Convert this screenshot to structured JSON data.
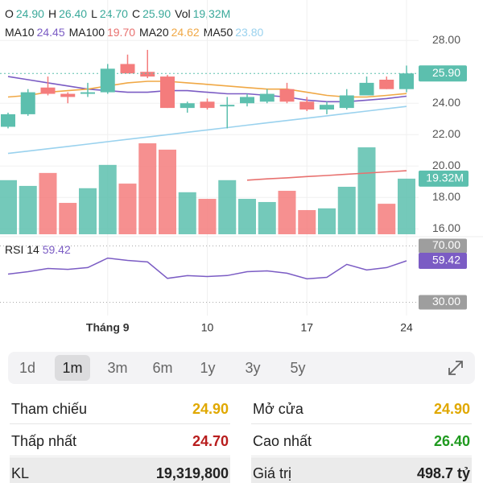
{
  "chart_data": {
    "type": "candlestick",
    "header": [
      {
        "label": "O",
        "value": "24.90"
      },
      {
        "label": "H",
        "value": "26.40"
      },
      {
        "label": "L",
        "value": "24.70"
      },
      {
        "label": "C",
        "value": "25.90"
      },
      {
        "label": "Vol",
        "value": "19,32M"
      }
    ],
    "header_color": "#3aa99a",
    "categories": [
      null,
      null,
      null,
      null,
      null,
      "Tháng 9",
      null,
      null,
      null,
      null,
      "10",
      null,
      null,
      null,
      null,
      "17",
      null,
      null,
      null,
      null,
      "24"
    ],
    "open": [
      22.5,
      23.3,
      25.0,
      24.6,
      24.6,
      24.7,
      26.5,
      26.0,
      25.7,
      23.7,
      24.1,
      23.8,
      24.0,
      24.1,
      24.9,
      24.1,
      23.6,
      23.7,
      24.5,
      25.5,
      24.9
    ],
    "high": [
      23.4,
      24.9,
      25.7,
      24.7,
      25.3,
      26.5,
      27.1,
      27.4,
      25.8,
      24.1,
      24.3,
      24.4,
      24.6,
      24.9,
      25.3,
      24.4,
      24.1,
      24.9,
      25.7,
      25.7,
      26.4
    ],
    "low": [
      22.4,
      23.2,
      24.5,
      24.0,
      24.4,
      24.6,
      25.9,
      25.6,
      23.7,
      23.4,
      23.6,
      22.4,
      23.8,
      24.0,
      24.0,
      23.5,
      23.3,
      23.6,
      24.5,
      24.9,
      24.7
    ],
    "close": [
      23.3,
      24.7,
      24.6,
      24.4,
      24.7,
      26.2,
      25.9,
      25.7,
      23.7,
      24.0,
      23.7,
      23.9,
      24.4,
      24.6,
      24.1,
      23.6,
      23.9,
      24.5,
      25.3,
      24.9,
      25.9
    ],
    "up_color": "#5cbfae",
    "down_color": "#f47c7c",
    "ylim": [
      15.5,
      29.5
    ],
    "yticks": [
      {
        "value": 28,
        "label": "28.00"
      },
      {
        "value": 24,
        "label": "24.00"
      },
      {
        "value": 22,
        "label": "22.00"
      },
      {
        "value": 20,
        "label": "20.00"
      },
      {
        "value": 18,
        "label": "18.00"
      },
      {
        "value": 16,
        "label": "16.00"
      }
    ],
    "grid": true,
    "last_price": {
      "value": 25.9,
      "label": "25.90"
    },
    "volume": {
      "values": [
        18.8,
        16.8,
        21.3,
        10.9,
        16.0,
        24.1,
        17.6,
        31.6,
        29.4,
        14.6,
        12.3,
        18.8,
        12.3,
        11.2,
        15.1,
        8.4,
        9.0,
        16.5,
        30.2,
        10.6,
        19.32
      ],
      "ylim": [
        0,
        40
      ],
      "last_label": "19.32M"
    },
    "ma": [
      {
        "name": "MA10",
        "value": "24.45",
        "color": "#7b5cc4",
        "values": [
          25.7,
          25.5,
          25.3,
          25.1,
          24.9,
          24.8,
          24.7,
          24.7,
          24.8,
          24.8,
          24.7,
          24.6,
          24.6,
          24.5,
          24.4,
          24.2,
          24.1,
          24.1,
          24.2,
          24.3,
          24.45
        ]
      },
      {
        "name": "MA100",
        "value": "19.70",
        "color": "#e8716f",
        "values": [
          null,
          null,
          null,
          null,
          null,
          null,
          null,
          null,
          null,
          null,
          null,
          null,
          19.1,
          19.18,
          19.25,
          19.33,
          19.4,
          19.48,
          19.55,
          19.63,
          19.7
        ]
      },
      {
        "name": "MA20",
        "value": "24.62",
        "color": "#f0a845",
        "values": [
          24.4,
          24.5,
          24.7,
          24.8,
          24.9,
          25.1,
          25.3,
          25.4,
          25.4,
          25.3,
          25.2,
          25.1,
          25.0,
          24.9,
          24.9,
          24.7,
          24.5,
          24.4,
          24.4,
          24.5,
          24.62
        ]
      },
      {
        "name": "MA50",
        "value": "23.80",
        "color": "#9ad2ee",
        "values": [
          20.8,
          20.95,
          21.1,
          21.25,
          21.4,
          21.55,
          21.7,
          21.85,
          22.0,
          22.15,
          22.3,
          22.45,
          22.6,
          22.75,
          22.9,
          23.05,
          23.2,
          23.35,
          23.5,
          23.65,
          23.8
        ]
      }
    ],
    "rsi": {
      "name": "RSI 14",
      "value_label": "59.42",
      "color": "#7b5cc4",
      "values": [
        50,
        51.7,
        54,
        53.4,
        54.6,
        61.4,
        59.7,
        58.6,
        47,
        48.9,
        48.3,
        49,
        51.7,
        52.3,
        50.6,
        46.6,
        47.7,
        56.9,
        52.9,
        54.6,
        59.42
      ],
      "ylim": [
        24,
        76
      ],
      "levels": [
        {
          "value": 70,
          "label": "70.00"
        },
        {
          "value": 30,
          "label": "30.00"
        }
      ]
    }
  },
  "periods": {
    "items": [
      "1d",
      "1m",
      "3m",
      "6m",
      "1y",
      "3y",
      "5y"
    ],
    "selected": 1
  },
  "stats": {
    "rows": [
      [
        {
          "label": "Tham chiếu",
          "value": "24.90",
          "color": "#e0a800"
        },
        {
          "label": "Mở cửa",
          "value": "24.90",
          "color": "#e0a800"
        }
      ],
      [
        {
          "label": "Thấp nhất",
          "value": "24.70",
          "color": "#b81d1d"
        },
        {
          "label": "Cao nhất",
          "value": "26.40",
          "color": "#1f9a1f"
        }
      ],
      [
        {
          "label": "KL",
          "value": "19,319,800",
          "color": "#222222"
        },
        {
          "label": "Giá trị",
          "value": "498.7 tỷ",
          "color": "#222222"
        }
      ]
    ]
  }
}
